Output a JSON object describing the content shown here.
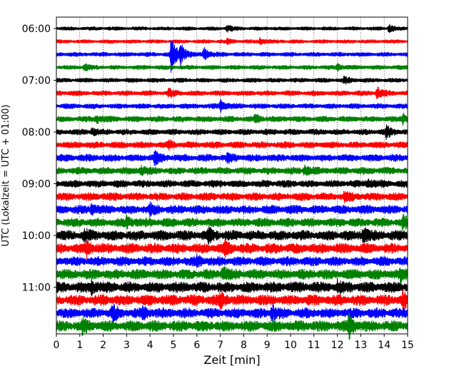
{
  "chart_data": {
    "type": "line",
    "subtype": "helicorder-seismogram",
    "xlabel": "Zeit  [min]",
    "ylabel": "UTC (Lokalzeit = UTC + 01:00)",
    "xlim": [
      0,
      15
    ],
    "x_ticks": [
      "0",
      "1",
      "2",
      "3",
      "4",
      "5",
      "6",
      "7",
      "8",
      "9",
      "10",
      "11",
      "12",
      "13",
      "14",
      "15"
    ],
    "y_ticks": [
      "06:00",
      "07:00",
      "08:00",
      "09:00",
      "10:00",
      "11:00"
    ],
    "grid": "vertical dotted at every minute",
    "trace_interval_minutes": 15,
    "trace_color_cycle": [
      "#000000",
      "#ff0000",
      "#0000ff",
      "#008000"
    ],
    "traces": [
      {
        "start": "06:00",
        "color": "#000000",
        "amplitude": 0.25,
        "events": [
          {
            "t": 7.3,
            "amp": 0.5
          },
          {
            "t": 14.2,
            "amp": 0.7
          }
        ]
      },
      {
        "start": "06:15",
        "color": "#ff0000",
        "amplitude": 0.25,
        "events": [
          {
            "t": 7.3,
            "amp": 0.4
          },
          {
            "t": 8.7,
            "amp": 0.5
          }
        ]
      },
      {
        "start": "06:30",
        "color": "#0000ff",
        "amplitude": 0.3,
        "events": [
          {
            "t": 4.9,
            "amp": 3.5
          },
          {
            "t": 5.3,
            "amp": 1.8
          },
          {
            "t": 6.3,
            "amp": 1.1
          }
        ]
      },
      {
        "start": "06:45",
        "color": "#008000",
        "amplitude": 0.3,
        "events": [
          {
            "t": 1.2,
            "amp": 0.5
          },
          {
            "t": 12.0,
            "amp": 0.6
          }
        ]
      },
      {
        "start": "07:00",
        "color": "#000000",
        "amplitude": 0.3,
        "events": [
          {
            "t": 12.3,
            "amp": 0.5
          }
        ]
      },
      {
        "start": "07:15",
        "color": "#ff0000",
        "amplitude": 0.35,
        "events": [
          {
            "t": 4.8,
            "amp": 0.6
          },
          {
            "t": 13.7,
            "amp": 1.0
          }
        ]
      },
      {
        "start": "07:30",
        "color": "#0000ff",
        "amplitude": 0.35,
        "events": [
          {
            "t": 7.0,
            "amp": 1.0
          }
        ]
      },
      {
        "start": "07:45",
        "color": "#008000",
        "amplitude": 0.4,
        "events": [
          {
            "t": 1.7,
            "amp": 0.8
          },
          {
            "t": 8.5,
            "amp": 0.8
          },
          {
            "t": 14.8,
            "amp": 0.8
          }
        ]
      },
      {
        "start": "08:00",
        "color": "#000000",
        "amplitude": 0.4,
        "events": [
          {
            "t": 1.5,
            "amp": 0.6
          },
          {
            "t": 14.1,
            "amp": 0.9
          }
        ]
      },
      {
        "start": "08:15",
        "color": "#ff0000",
        "amplitude": 0.45,
        "events": [
          {
            "t": 4.8,
            "amp": 0.5
          }
        ]
      },
      {
        "start": "08:30",
        "color": "#0000ff",
        "amplitude": 0.5,
        "events": [
          {
            "t": 4.2,
            "amp": 1.0
          },
          {
            "t": 7.3,
            "amp": 0.6
          }
        ]
      },
      {
        "start": "08:45",
        "color": "#008000",
        "amplitude": 0.5,
        "events": [
          {
            "t": 3.6,
            "amp": 0.7
          },
          {
            "t": 10.6,
            "amp": 0.8
          }
        ]
      },
      {
        "start": "09:00",
        "color": "#000000",
        "amplitude": 0.5,
        "events": [
          {
            "t": 13.3,
            "amp": 0.7
          }
        ]
      },
      {
        "start": "09:15",
        "color": "#ff0000",
        "amplitude": 0.55,
        "events": [
          {
            "t": 12.3,
            "amp": 0.6
          }
        ]
      },
      {
        "start": "09:30",
        "color": "#0000ff",
        "amplitude": 0.6,
        "events": [
          {
            "t": 1.5,
            "amp": 0.8
          },
          {
            "t": 4.0,
            "amp": 0.7
          }
        ]
      },
      {
        "start": "09:45",
        "color": "#008000",
        "amplitude": 0.6,
        "events": [
          {
            "t": 3.0,
            "amp": 0.9
          },
          {
            "t": 14.8,
            "amp": 1.0
          }
        ]
      },
      {
        "start": "10:00",
        "color": "#000000",
        "amplitude": 0.7,
        "events": [
          {
            "t": 1.2,
            "amp": 0.8
          },
          {
            "t": 6.5,
            "amp": 1.1
          },
          {
            "t": 13.1,
            "amp": 1.3
          }
        ]
      },
      {
        "start": "10:15",
        "color": "#ff0000",
        "amplitude": 0.7,
        "events": [
          {
            "t": 1.3,
            "amp": 1.1
          },
          {
            "t": 7.2,
            "amp": 0.8
          }
        ]
      },
      {
        "start": "10:30",
        "color": "#0000ff",
        "amplitude": 0.65,
        "events": [
          {
            "t": 6.0,
            "amp": 0.6
          }
        ]
      },
      {
        "start": "10:45",
        "color": "#008000",
        "amplitude": 0.7,
        "events": [
          {
            "t": 7.1,
            "amp": 1.1
          },
          {
            "t": 14.7,
            "amp": 0.9
          }
        ]
      },
      {
        "start": "11:00",
        "color": "#000000",
        "amplitude": 0.75,
        "events": [
          {
            "t": 1.5,
            "amp": 0.9
          },
          {
            "t": 12.0,
            "amp": 0.8
          }
        ]
      },
      {
        "start": "11:15",
        "color": "#ff0000",
        "amplitude": 0.75,
        "events": [
          {
            "t": 7.0,
            "amp": 1.0
          },
          {
            "t": 14.8,
            "amp": 1.0
          }
        ]
      },
      {
        "start": "11:30",
        "color": "#0000ff",
        "amplitude": 0.7,
        "events": [
          {
            "t": 2.4,
            "amp": 1.1
          },
          {
            "t": 3.7,
            "amp": 0.9
          },
          {
            "t": 9.2,
            "amp": 1.2
          }
        ]
      },
      {
        "start": "11:45",
        "color": "#008000",
        "amplitude": 0.75,
        "events": [
          {
            "t": 1.1,
            "amp": 0.9
          },
          {
            "t": 12.5,
            "amp": 1.8
          }
        ]
      }
    ]
  }
}
